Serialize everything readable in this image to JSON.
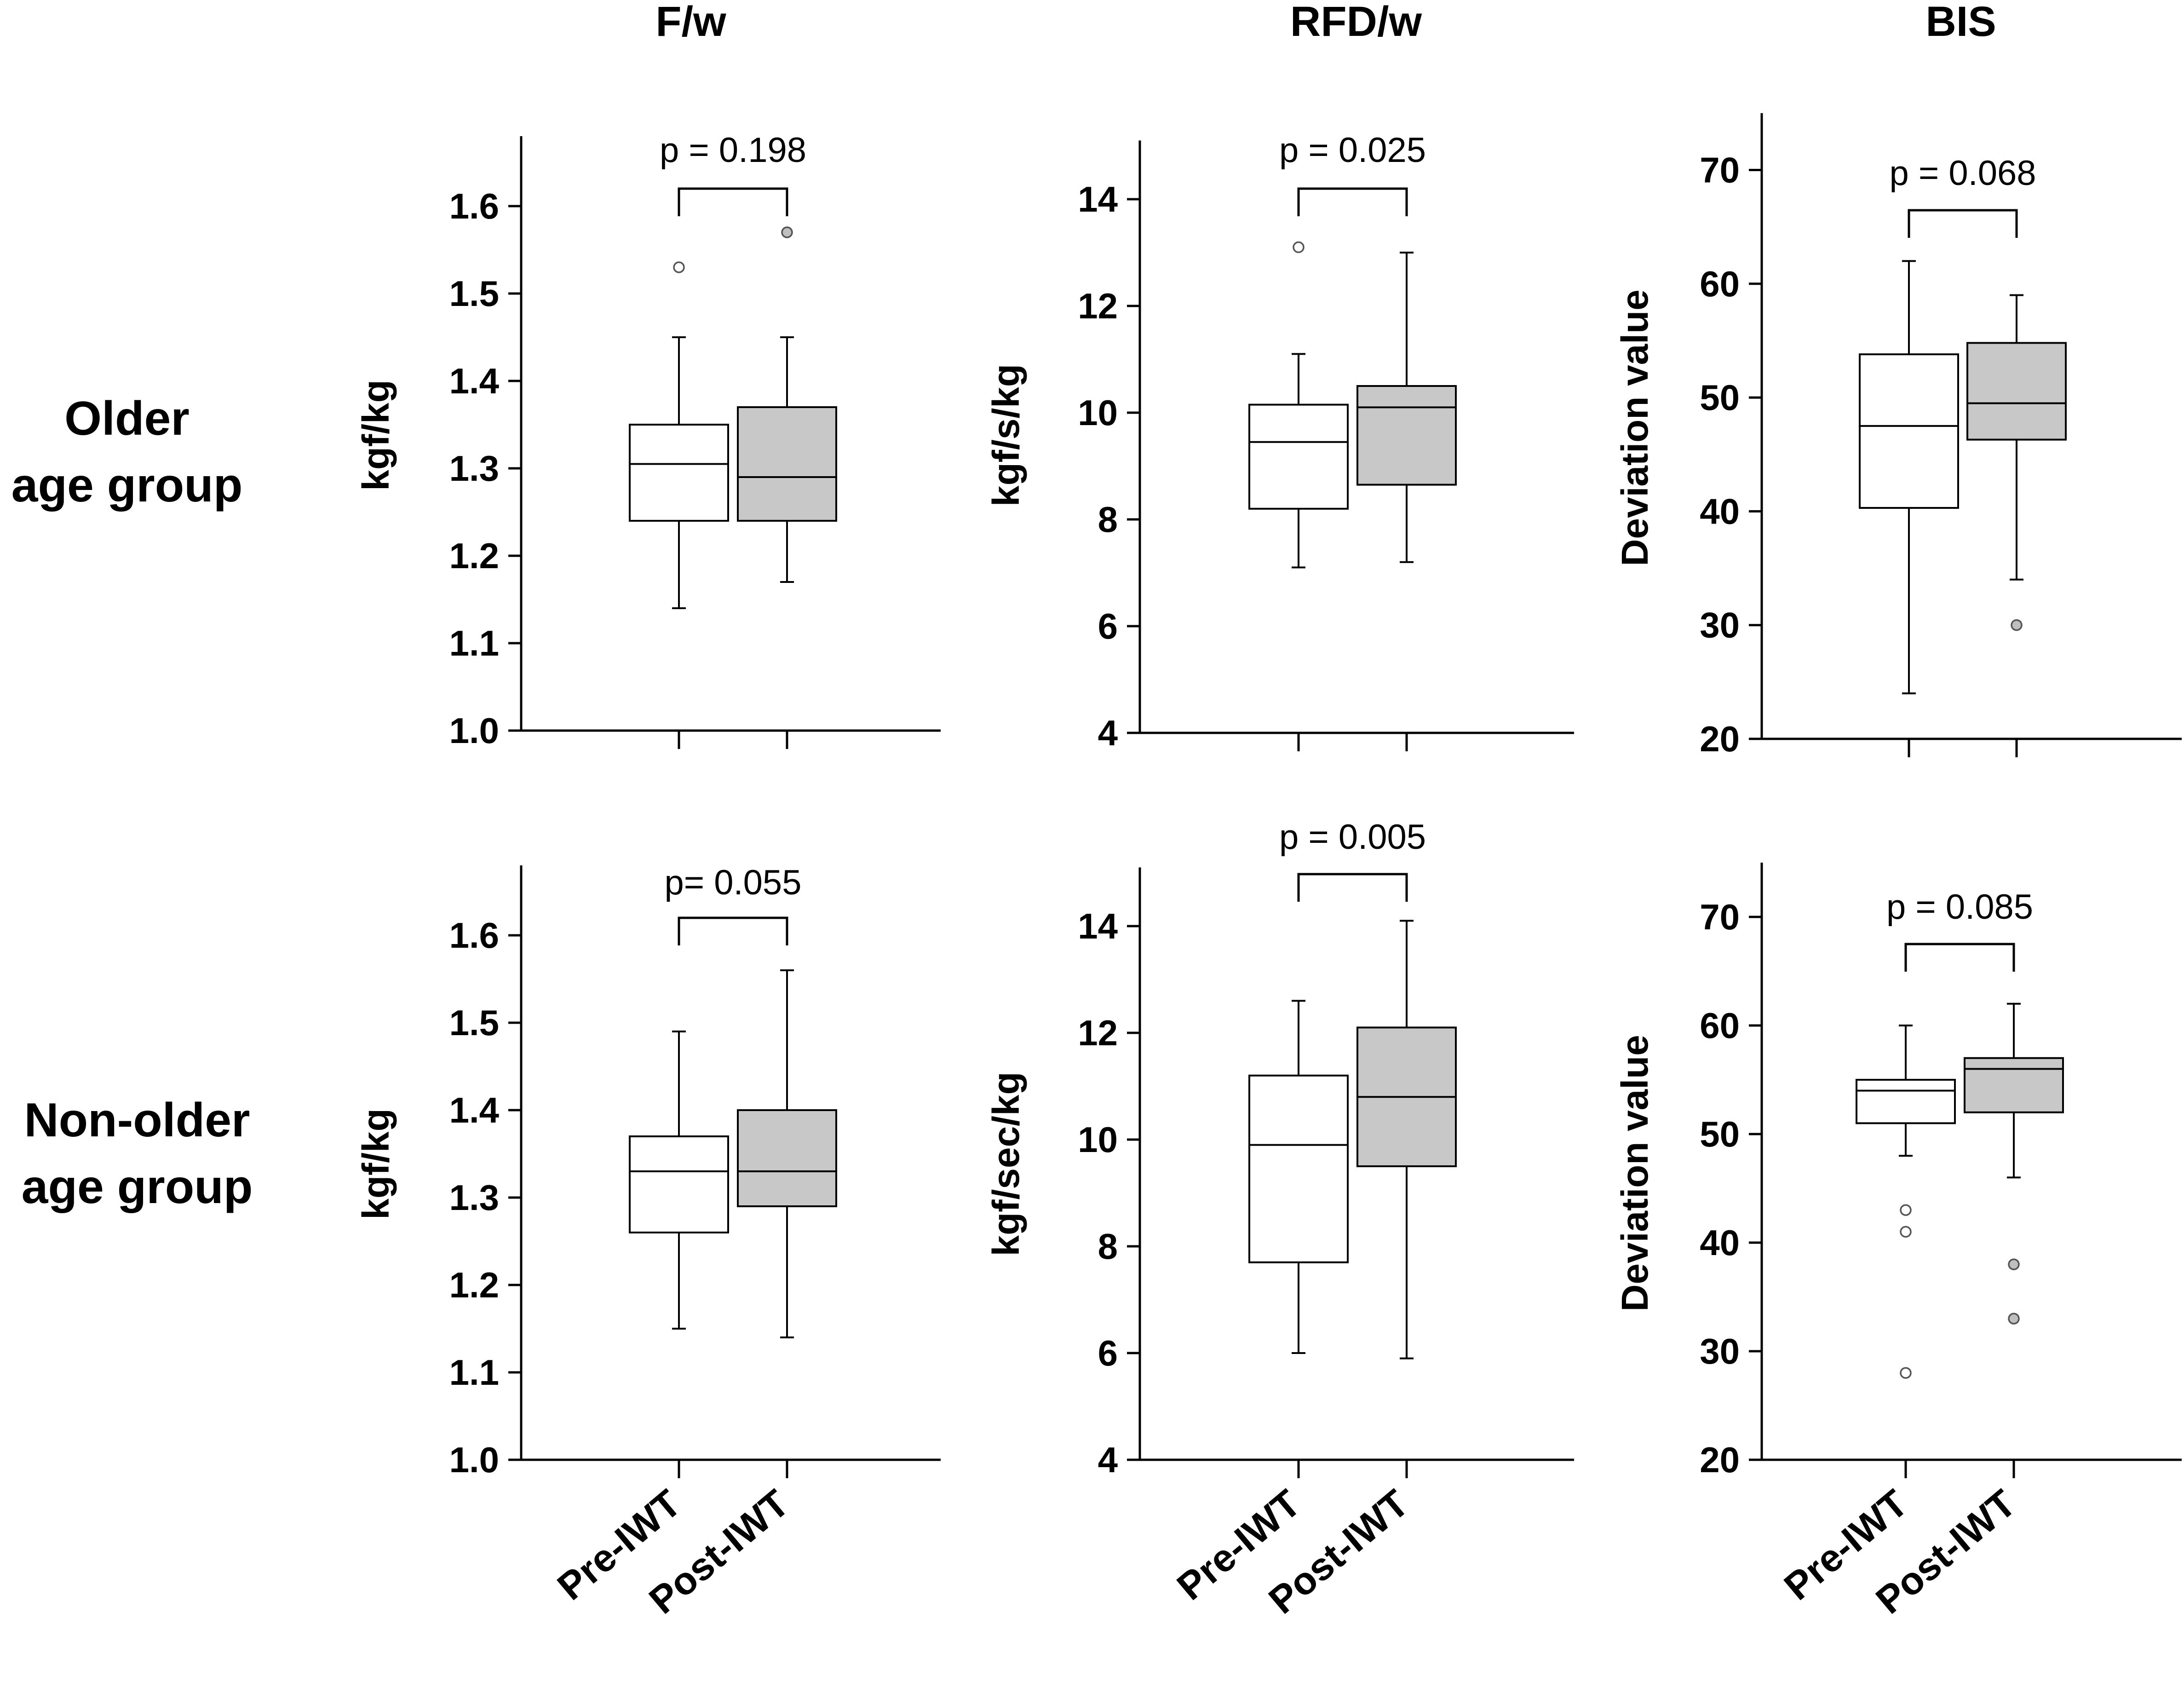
{
  "figure": {
    "column_titles": [
      "F/w",
      "RFD/w",
      "BIS"
    ],
    "row_labels": [
      [
        "Older",
        "age group"
      ],
      [
        "Non-older",
        "age group"
      ]
    ]
  },
  "colors": {
    "pre_box": "#ffffff",
    "post_box": "#c8c8c8",
    "outlier_pre": "#ffffff",
    "outlier_post": "#bfbfbf",
    "stroke": "#000000"
  },
  "chart_data": [
    {
      "id": "fw-older",
      "type": "box",
      "title": "F/w",
      "row": "Older age group",
      "ylabel": "kgf/kg",
      "ylim": [
        1.0,
        1.68
      ],
      "yticks": [
        1.0,
        1.1,
        1.2,
        1.3,
        1.4,
        1.5,
        1.6
      ],
      "tick_decimals": 1,
      "categories": [
        "Pre-IWT",
        "Post-IWT"
      ],
      "show_categories": false,
      "p_label": "p = 0.198",
      "boxes": [
        {
          "name": "Pre-IWT",
          "whisker_low": 1.14,
          "q1": 1.24,
          "median": 1.305,
          "q3": 1.35,
          "whisker_high": 1.45,
          "outliers": [
            1.53
          ]
        },
        {
          "name": "Post-IWT",
          "whisker_low": 1.17,
          "q1": 1.24,
          "median": 1.29,
          "q3": 1.37,
          "whisker_high": 1.45,
          "outliers": [
            1.57
          ]
        }
      ]
    },
    {
      "id": "rfd-older",
      "type": "box",
      "title": "RFD/w",
      "row": "Older age group",
      "ylabel": "kgf/s/kg",
      "ylim": [
        4,
        15.1
      ],
      "yticks": [
        4,
        6,
        8,
        10,
        12,
        14
      ],
      "tick_decimals": 0,
      "categories": [
        "Pre-IWT",
        "Post-IWT"
      ],
      "show_categories": false,
      "p_label": "p = 0.025",
      "boxes": [
        {
          "name": "Pre-IWT",
          "whisker_low": 7.1,
          "q1": 8.2,
          "median": 9.45,
          "q3": 10.15,
          "whisker_high": 11.1,
          "outliers": [
            13.1
          ]
        },
        {
          "name": "Post-IWT",
          "whisker_low": 7.2,
          "q1": 8.65,
          "median": 10.1,
          "q3": 10.5,
          "whisker_high": 13.0,
          "outliers": []
        }
      ]
    },
    {
      "id": "bis-older",
      "type": "box",
      "title": "BIS",
      "row": "Older age group",
      "ylabel": "Deviation value",
      "ylim": [
        20,
        75
      ],
      "yticks": [
        20,
        30,
        40,
        50,
        60,
        70
      ],
      "tick_decimals": 0,
      "categories": [
        "Pre-IWT",
        "Post-IWT"
      ],
      "show_categories": false,
      "p_label": "p = 0.068",
      "boxes": [
        {
          "name": "Pre-IWT",
          "whisker_low": 24,
          "q1": 40.3,
          "median": 47.5,
          "q3": 53.8,
          "whisker_high": 62,
          "outliers": []
        },
        {
          "name": "Post-IWT",
          "whisker_low": 34,
          "q1": 46.3,
          "median": 49.5,
          "q3": 54.8,
          "whisker_high": 59,
          "outliers": [
            30
          ]
        }
      ]
    },
    {
      "id": "fw-nonolder",
      "type": "box",
      "title": "F/w",
      "row": "Non-older age group",
      "ylabel": "kgf/kg",
      "ylim": [
        1.0,
        1.68
      ],
      "yticks": [
        1.0,
        1.1,
        1.2,
        1.3,
        1.4,
        1.5,
        1.6
      ],
      "tick_decimals": 1,
      "categories": [
        "Pre-IWT",
        "Post-IWT"
      ],
      "show_categories": true,
      "p_label": "p= 0.055",
      "boxes": [
        {
          "name": "Pre-IWT",
          "whisker_low": 1.15,
          "q1": 1.26,
          "median": 1.33,
          "q3": 1.37,
          "whisker_high": 1.49,
          "outliers": []
        },
        {
          "name": "Post-IWT",
          "whisker_low": 1.14,
          "q1": 1.29,
          "median": 1.33,
          "q3": 1.4,
          "whisker_high": 1.56,
          "outliers": []
        }
      ]
    },
    {
      "id": "rfd-nonolder",
      "type": "box",
      "title": "RFD/w",
      "row": "Non-older age group",
      "ylabel": "kgf/sec/kg",
      "ylim": [
        4,
        15.1
      ],
      "yticks": [
        4,
        6,
        8,
        10,
        12,
        14
      ],
      "tick_decimals": 0,
      "categories": [
        "Pre-IWT",
        "Post-IWT"
      ],
      "show_categories": true,
      "p_label": "p = 0.005",
      "boxes": [
        {
          "name": "Pre-IWT",
          "whisker_low": 6.0,
          "q1": 7.7,
          "median": 9.9,
          "q3": 11.2,
          "whisker_high": 12.6,
          "outliers": []
        },
        {
          "name": "Post-IWT",
          "whisker_low": 5.9,
          "q1": 9.5,
          "median": 10.8,
          "q3": 12.1,
          "whisker_high": 14.1,
          "outliers": []
        }
      ]
    },
    {
      "id": "bis-nonolder",
      "type": "box",
      "title": "BIS",
      "row": "Non-older age group",
      "ylabel": "Deviation value",
      "ylim": [
        20,
        75
      ],
      "yticks": [
        20,
        30,
        40,
        50,
        60,
        70
      ],
      "tick_decimals": 0,
      "categories": [
        "Pre-IWT",
        "Post-IWT"
      ],
      "show_categories": true,
      "p_label": "p = 0.085",
      "boxes": [
        {
          "name": "Pre-IWT",
          "whisker_low": 48,
          "q1": 51,
          "median": 54,
          "q3": 55,
          "whisker_high": 60,
          "outliers": [
            43,
            41,
            28
          ]
        },
        {
          "name": "Post-IWT",
          "whisker_low": 46,
          "q1": 52,
          "median": 56,
          "q3": 57,
          "whisker_high": 62,
          "outliers": [
            38,
            33
          ]
        }
      ]
    }
  ]
}
